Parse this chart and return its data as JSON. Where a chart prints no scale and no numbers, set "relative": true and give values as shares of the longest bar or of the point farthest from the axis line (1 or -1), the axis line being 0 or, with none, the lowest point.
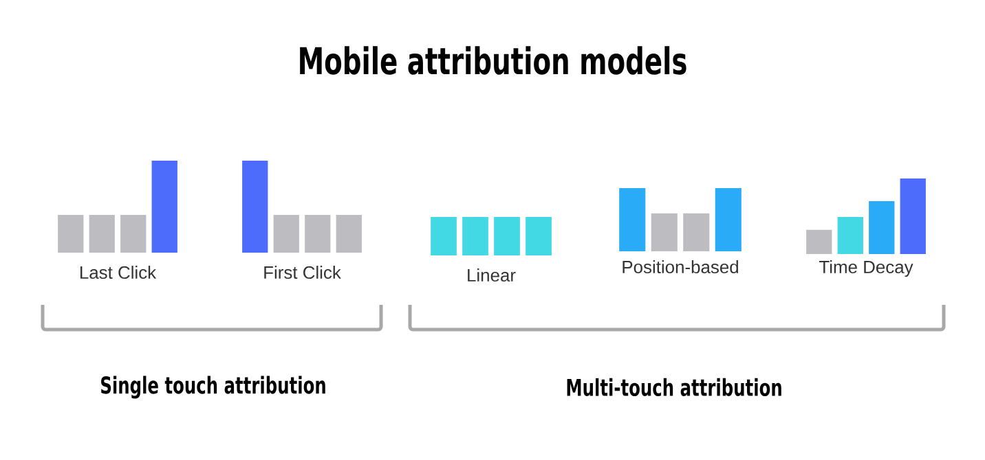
{
  "chart_data": [
    {
      "type": "other",
      "title": "Mobile attribution models",
      "annotations": [
        "Single touch attribution",
        "Multi-touch attribution"
      ]
    },
    {
      "type": "bar",
      "relative": true,
      "title": "Last Click",
      "categories": [
        null,
        null,
        null,
        null
      ],
      "values": [
        0.41,
        0.41,
        0.41,
        1
      ],
      "colors": [
        "#bdbdc1",
        "#bdbdc1",
        "#bdbdc1",
        "#4e6cfb"
      ]
    },
    {
      "type": "bar",
      "relative": true,
      "title": "First Click",
      "categories": [
        null,
        null,
        null,
        null
      ],
      "values": [
        1,
        0.41,
        0.41,
        0.41
      ],
      "colors": [
        "#4e6cfb",
        "#bdbdc1",
        "#bdbdc1",
        "#bdbdc1"
      ]
    },
    {
      "type": "bar",
      "relative": true,
      "title": "Linear",
      "categories": [
        null,
        null,
        null,
        null
      ],
      "values": [
        1,
        1,
        1,
        1
      ],
      "colors": [
        "#42d8e4",
        "#42d8e4",
        "#42d8e4",
        "#42d8e4"
      ]
    },
    {
      "type": "bar",
      "relative": true,
      "title": "Position-based",
      "categories": [
        null,
        null,
        null,
        null
      ],
      "values": [
        1,
        0.6,
        0.6,
        1
      ],
      "colors": [
        "#2aabf8",
        "#bdbdc1",
        "#bdbdc1",
        "#2aabf8"
      ]
    },
    {
      "type": "bar",
      "relative": true,
      "title": "Time Decay",
      "categories": [
        null,
        null,
        null,
        null
      ],
      "values": [
        0.32,
        0.49,
        0.7,
        1
      ],
      "colors": [
        "#bdbdc1",
        "#42d8e4",
        "#2aabf8",
        "#4e6cfb"
      ]
    }
  ]
}
